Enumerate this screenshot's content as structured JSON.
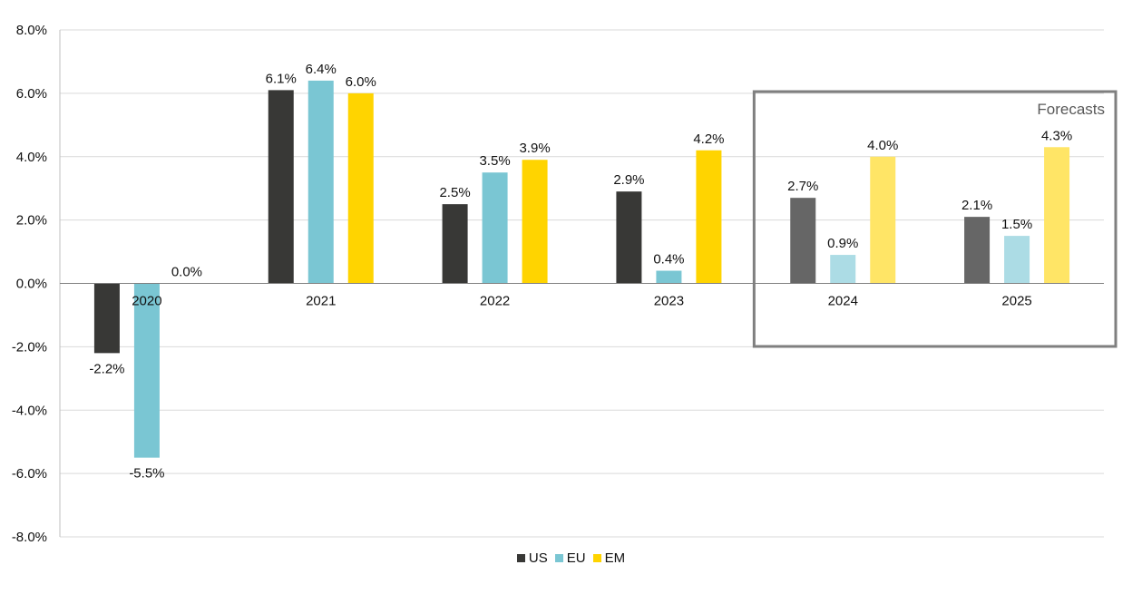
{
  "chart_data": {
    "type": "bar",
    "categories": [
      "2020",
      "2021",
      "2022",
      "2023",
      "2024",
      "2025"
    ],
    "series": [
      {
        "name": "US",
        "values": [
          -2.2,
          6.1,
          2.5,
          2.9,
          2.7,
          2.1
        ],
        "color": "#383836",
        "forecast_color": "#666666"
      },
      {
        "name": "EU",
        "values": [
          -5.5,
          6.4,
          3.5,
          0.4,
          0.9,
          1.5
        ],
        "color": "#7ac6d3",
        "forecast_color": "#acdce5"
      },
      {
        "name": "EM",
        "values": [
          0.0,
          6.0,
          3.9,
          4.2,
          4.0,
          4.3
        ],
        "color": "#ffd400",
        "forecast_color": "#ffe566"
      }
    ],
    "data_labels": [
      [
        "-2.2%",
        "6.1%",
        "2.5%",
        "2.9%",
        "2.7%",
        "2.1%"
      ],
      [
        "-5.5%",
        "6.4%",
        "3.5%",
        "0.4%",
        "0.9%",
        "1.5%"
      ],
      [
        "0.0%",
        "6.0%",
        "3.9%",
        "4.2%",
        "4.0%",
        "4.3%"
      ]
    ],
    "y_ticks": [
      "8.0%",
      "6.0%",
      "4.0%",
      "2.0%",
      "0.0%",
      "-2.0%",
      "-4.0%",
      "-6.0%",
      "-8.0%"
    ],
    "ylim": [
      -8,
      8
    ],
    "y_step": 2,
    "grid": true,
    "legend_position": "bottom",
    "forecast_categories": [
      "2024",
      "2025"
    ],
    "annotation": "Forecasts",
    "forecast_box_color": "#7f7f7f",
    "title": "",
    "xlabel": "",
    "ylabel": ""
  }
}
